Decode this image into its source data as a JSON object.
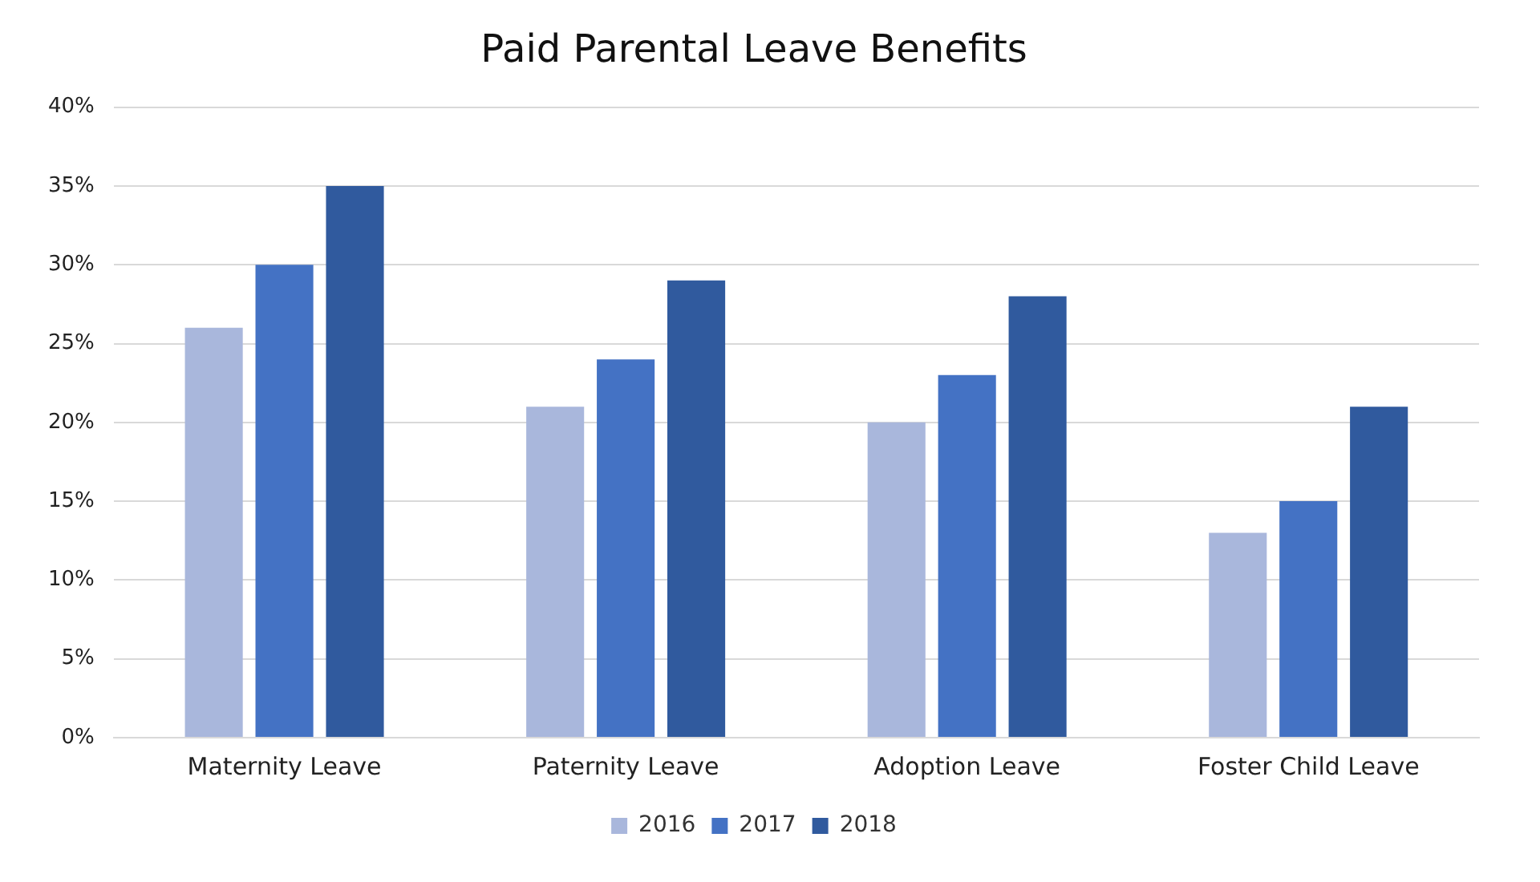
{
  "chart_data": {
    "type": "bar",
    "title": "Paid Parental Leave Benefits",
    "categories": [
      "Maternity Leave",
      "Paternity Leave",
      "Adoption Leave",
      "Foster Child Leave"
    ],
    "series": [
      {
        "name": "2016",
        "color": "#a9b7dc",
        "values": [
          26,
          21,
          20,
          13
        ]
      },
      {
        "name": "2017",
        "color": "#4472c4",
        "values": [
          30,
          24,
          23,
          15
        ]
      },
      {
        "name": "2018",
        "color": "#305a9e",
        "values": [
          35,
          29,
          28,
          21
        ]
      }
    ],
    "ylim": [
      0,
      40
    ],
    "yticks": [
      {
        "value": 0,
        "label": "0%"
      },
      {
        "value": 5,
        "label": "5%"
      },
      {
        "value": 10,
        "label": "10%"
      },
      {
        "value": 15,
        "label": "15%"
      },
      {
        "value": 20,
        "label": "20%"
      },
      {
        "value": 25,
        "label": "25%"
      },
      {
        "value": 30,
        "label": "30%"
      },
      {
        "value": 35,
        "label": "35%"
      },
      {
        "value": 40,
        "label": "40%"
      }
    ],
    "grid": "y",
    "legend": "bottom"
  }
}
